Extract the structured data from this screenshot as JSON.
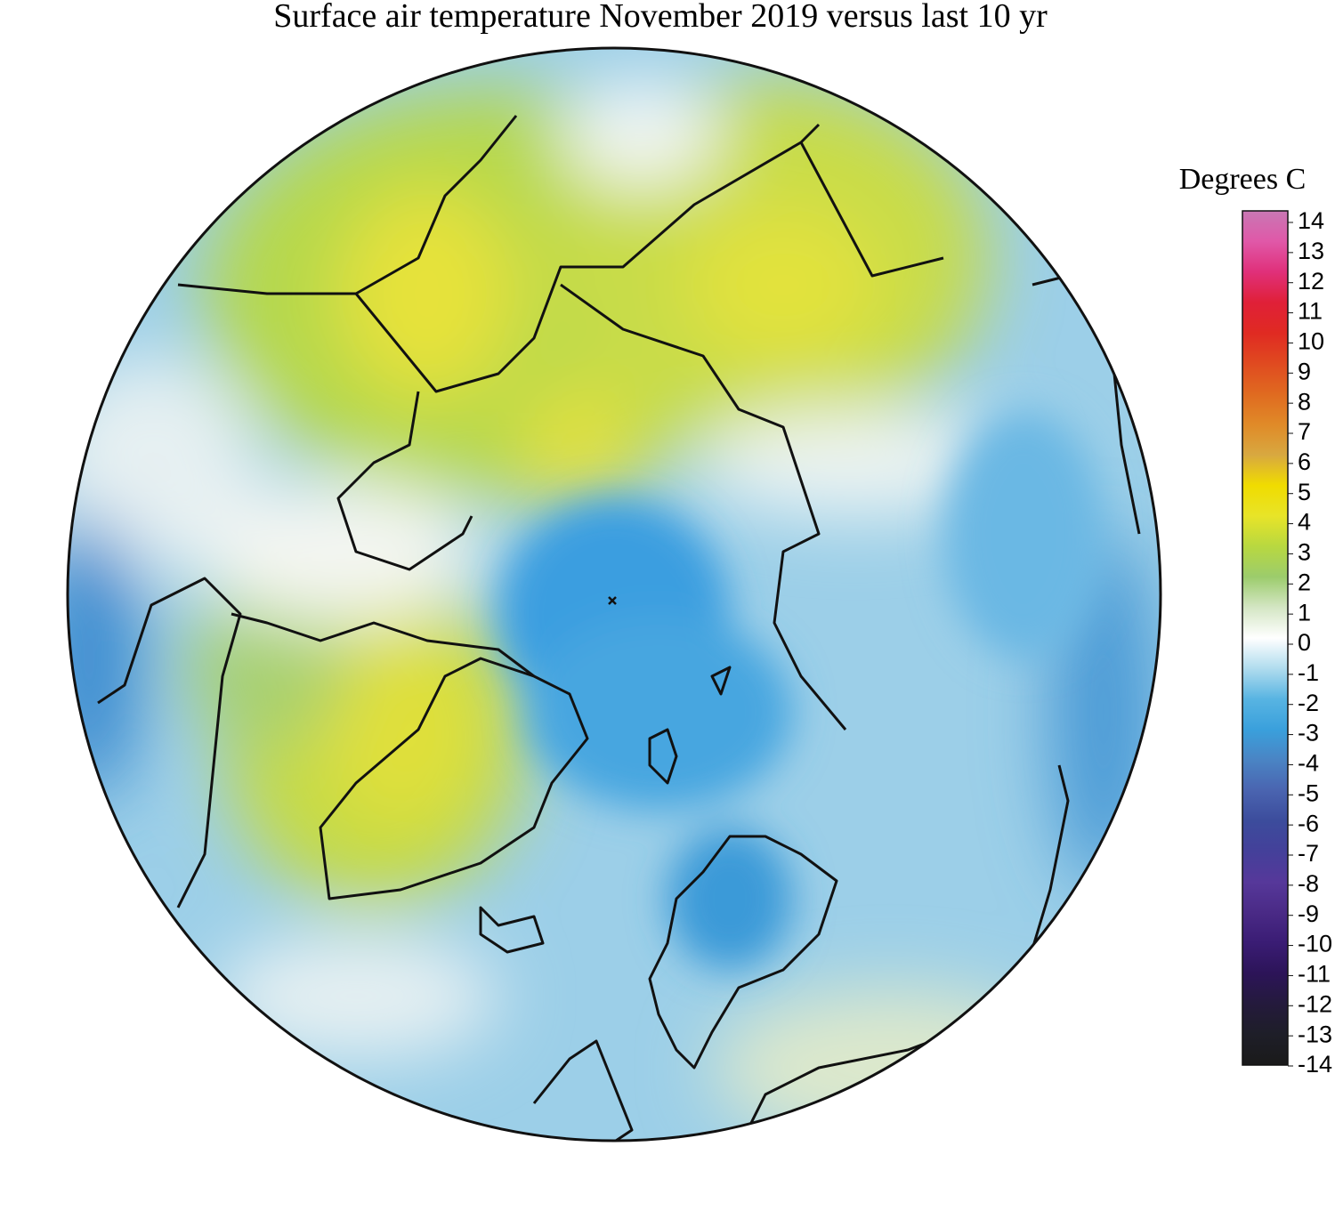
{
  "title": "Surface air temperature November 2019 versus last 10 yr",
  "colorbar": {
    "label": "Degrees C",
    "ticks": [
      14,
      13,
      12,
      11,
      10,
      9,
      8,
      7,
      6,
      5,
      4,
      3,
      2,
      1,
      0,
      -1,
      -2,
      -3,
      -4,
      -5,
      -6,
      -7,
      -8,
      -9,
      -10,
      -11,
      -12,
      -13,
      -14
    ],
    "colors": [
      "#c878b4",
      "#e058a8",
      "#e0307a",
      "#e02038",
      "#e02a22",
      "#e04a20",
      "#e06a20",
      "#e08a28",
      "#d8a840",
      "#f0dc00",
      "#e8e428",
      "#b8d840",
      "#9ccc6c",
      "#d4e6c4",
      "#ffffff",
      "#b0dcee",
      "#58b4e2",
      "#3aa0dc",
      "#4a84c4",
      "#4a64b0",
      "#3c4c9c",
      "#44409a",
      "#56389a",
      "#4a2a86",
      "#3a1c74",
      "#2c1458",
      "#241a3c",
      "#1e1e28",
      "#1a1a1a"
    ]
  }
}
